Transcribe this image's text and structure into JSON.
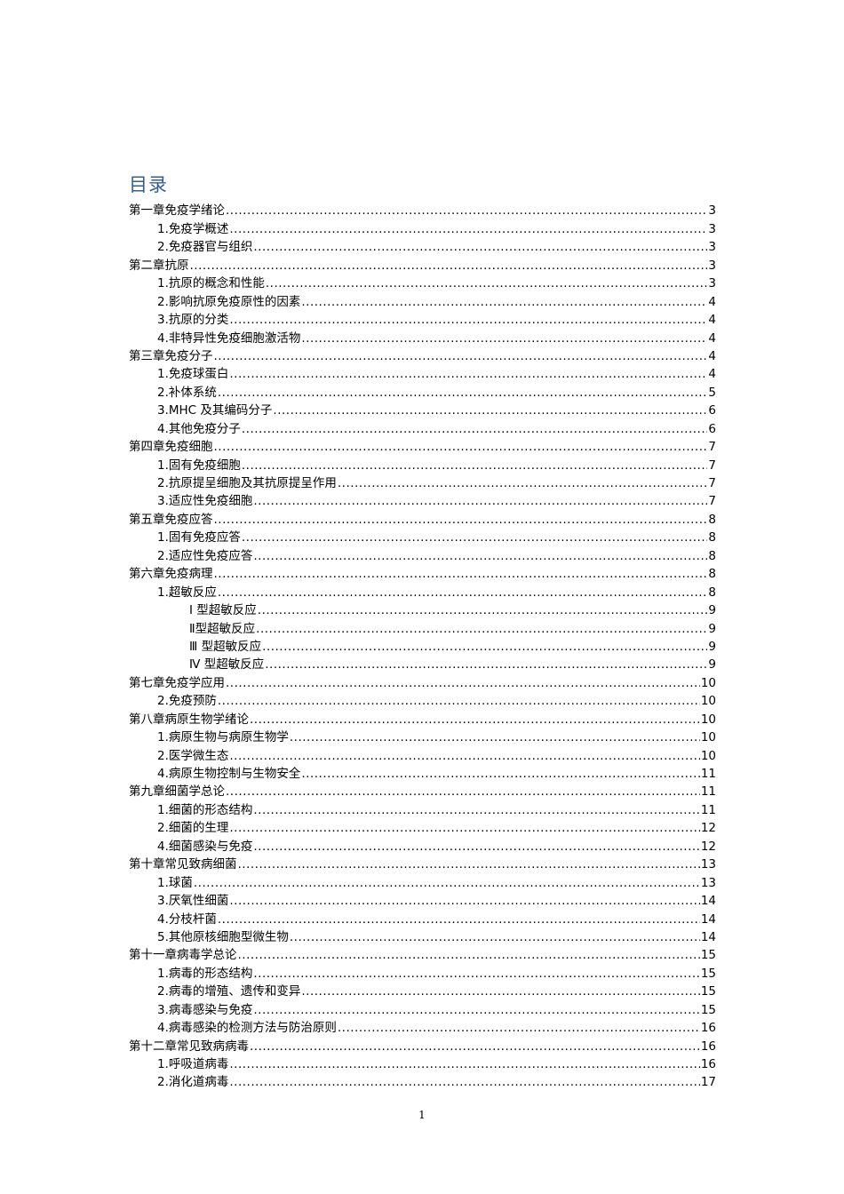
{
  "title": "目录",
  "entries": [
    {
      "text": "第一章免疫学绪论",
      "page": "3",
      "level": 0
    },
    {
      "text": "1.免疫学概述",
      "page": "3",
      "level": 1
    },
    {
      "text": "2.免疫器官与组织",
      "page": "3",
      "level": 1
    },
    {
      "text": "第二章抗原",
      "page": "3",
      "level": 0
    },
    {
      "text": "1.抗原的概念和性能",
      "page": "3",
      "level": 1
    },
    {
      "text": "2.影响抗原免疫原性的因素",
      "page": "4",
      "level": 1
    },
    {
      "text": "3.抗原的分类",
      "page": "4",
      "level": 1
    },
    {
      "text": "4.非特异性免疫细胞激活物",
      "page": "4",
      "level": 1
    },
    {
      "text": "第三章免疫分子",
      "page": "4",
      "level": 0
    },
    {
      "text": "1.免疫球蛋白",
      "page": "4",
      "level": 1
    },
    {
      "text": "2.补体系统",
      "page": "5",
      "level": 1
    },
    {
      "text": "3.MHC 及其编码分子",
      "page": "6",
      "level": 1
    },
    {
      "text": "4.其他免疫分子",
      "page": "6",
      "level": 1
    },
    {
      "text": "第四章免疫细胞",
      "page": "7",
      "level": 0
    },
    {
      "text": "1.固有免疫细胞",
      "page": "7",
      "level": 1
    },
    {
      "text": "2.抗原提呈细胞及其抗原提呈作用",
      "page": "7",
      "level": 1
    },
    {
      "text": "3.适应性免疫细胞",
      "page": "7",
      "level": 1
    },
    {
      "text": "第五章免疫应答",
      "page": "8",
      "level": 0
    },
    {
      "text": "1.固有免疫应答",
      "page": "8",
      "level": 1
    },
    {
      "text": "2.适应性免疫应答",
      "page": "8",
      "level": 1
    },
    {
      "text": "第六章免疫病理",
      "page": "8",
      "level": 0
    },
    {
      "text": "1.超敏反应",
      "page": "8",
      "level": 1
    },
    {
      "text": "Ⅰ 型超敏反应",
      "page": "9",
      "level": 2
    },
    {
      "text": "Ⅱ型超敏反应",
      "page": "9",
      "level": 2
    },
    {
      "text": "Ⅲ 型超敏反应",
      "page": "9",
      "level": 2
    },
    {
      "text": "Ⅳ 型超敏反应",
      "page": "9",
      "level": 2
    },
    {
      "text": "第七章免疫学应用",
      "page": "10",
      "level": 0
    },
    {
      "text": "2.免疫预防",
      "page": "10",
      "level": 1
    },
    {
      "text": "第八章病原生物学绪论",
      "page": "10",
      "level": 0
    },
    {
      "text": "1.病原生物与病原生物学",
      "page": "10",
      "level": 1
    },
    {
      "text": "2.医学微生态",
      "page": "10",
      "level": 1
    },
    {
      "text": "4.病原生物控制与生物安全",
      "page": "11",
      "level": 1
    },
    {
      "text": "第九章细菌学总论",
      "page": "11",
      "level": 0
    },
    {
      "text": "1.细菌的形态结构",
      "page": "11",
      "level": 1
    },
    {
      "text": "2.细菌的生理",
      "page": "12",
      "level": 1
    },
    {
      "text": "4.细菌感染与免疫",
      "page": "12",
      "level": 1
    },
    {
      "text": "第十章常见致病细菌",
      "page": "13",
      "level": 0
    },
    {
      "text": "1.球菌",
      "page": "13",
      "level": 1
    },
    {
      "text": "3.厌氧性细菌",
      "page": "14",
      "level": 1
    },
    {
      "text": "4.分枝杆菌",
      "page": "14",
      "level": 1
    },
    {
      "text": "5.其他原核细胞型微生物",
      "page": "14",
      "level": 1
    },
    {
      "text": "第十一章病毒学总论",
      "page": "15",
      "level": 0
    },
    {
      "text": "1.病毒的形态结构",
      "page": "15",
      "level": 1
    },
    {
      "text": "2.病毒的增殖、遗传和变异",
      "page": "15",
      "level": 1
    },
    {
      "text": "3.病毒感染与免疫",
      "page": "15",
      "level": 1
    },
    {
      "text": "4.病毒感染的检测方法与防治原则",
      "page": "16",
      "level": 1
    },
    {
      "text": "第十二章常见致病病毒",
      "page": "16",
      "level": 0
    },
    {
      "text": "1.呼吸道病毒",
      "page": "16",
      "level": 1
    },
    {
      "text": "2.消化道病毒",
      "page": "17",
      "level": 1
    }
  ],
  "footer": {
    "page_number": "1"
  }
}
